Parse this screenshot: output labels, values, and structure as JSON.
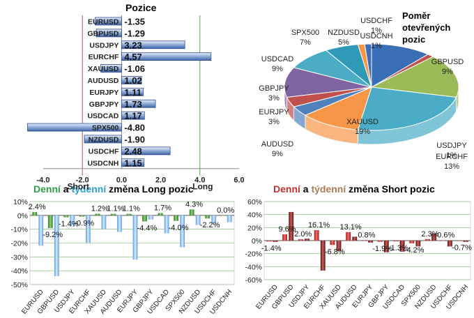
{
  "chart_data": [
    {
      "type": "bar",
      "orientation": "horizontal",
      "title": "Pozice",
      "categories": [
        "EURUSD",
        "GBPUSD",
        "USDJPY",
        "EURCHF",
        "XAUUSD",
        "AUDUSD",
        "EURJPY",
        "GBPJPY",
        "USDCAD",
        "SPX500",
        "NZDUSD",
        "USDCHF",
        "USDCNH"
      ],
      "values": [
        -1.35,
        -1.29,
        3.23,
        4.57,
        -1.06,
        1.02,
        1.11,
        1.73,
        1.17,
        -4.8,
        -1.9,
        2.48,
        1.15
      ],
      "value_labels": [
        "-1.35",
        "-1.29",
        "3.23",
        "4.57",
        "-1.06",
        "1.02",
        "1.11",
        "1.73",
        "1.17",
        "-4.80",
        "-1.90",
        "2.48",
        "1.15"
      ],
      "xlim": [
        -4,
        6
      ],
      "x_ticks": [
        "-4.0",
        "-2.0",
        "0.0",
        "2.0",
        "4.0",
        "6.0"
      ],
      "short_label": "Short",
      "long_label": "Long",
      "colors": {
        "bar": "#7f9fd0",
        "short_line": "#c0504d",
        "long_line": "#4caa3c"
      }
    },
    {
      "type": "pie",
      "title": "Poměr otevřených pozic",
      "slices": [
        {
          "name": "GBPUSD",
          "pct": "9%",
          "value": 9,
          "color": "#3a6fb5"
        },
        {
          "name": "USDJPY",
          "pct": "1%",
          "value": 1,
          "color": "#c0504d"
        },
        {
          "name": "EURCHF",
          "pct": "13%",
          "value": 13,
          "color": "#9bbb59"
        },
        {
          "name": "XAUUSD",
          "pct": "19%",
          "value": 19,
          "color": "#4aacc6"
        },
        {
          "name": "AUDUSD",
          "pct": "9%",
          "value": 9,
          "color": "#f79646"
        },
        {
          "name": "EURJPY",
          "pct": "3%",
          "value": 3,
          "color": "#4f81bd"
        },
        {
          "name": "GBPJPY",
          "pct": "3%",
          "value": 3,
          "color": "#c0504d"
        },
        {
          "name": "USDCAD",
          "pct": "9%",
          "value": 9,
          "color": "#8064a2"
        },
        {
          "name": "SPX500",
          "pct": "7%",
          "value": 7,
          "color": "#4bacc6"
        },
        {
          "name": "NZDUSD",
          "pct": "5%",
          "value": 5,
          "color": "#2e9ab7"
        },
        {
          "name": "USDCHF",
          "pct": "1%",
          "value": 1,
          "color": "#f79646"
        },
        {
          "name": "USDCNH",
          "pct": "1%",
          "value": 1,
          "color": "#3a6fb5"
        }
      ]
    },
    {
      "type": "bar",
      "title_parts": [
        "Denní",
        " a ",
        "týdenní",
        " změna Long pozic"
      ],
      "categories": [
        "EURUSD",
        "GBPUSD",
        "USDJPY",
        "EURCHF",
        "XAUUSD",
        "AUDUSD",
        "EURJPY",
        "GBPJPY",
        "USDCAD",
        "SPX500",
        "NZDUSD",
        "USDCHF",
        "USDCNH"
      ],
      "series": [
        {
          "values": [
            2.4,
            -9.2,
            -1.4,
            -0.9,
            1.2,
            1.1,
            1.1,
            -4.4,
            1.7,
            -4.0,
            4.3,
            -2.2,
            0.0
          ]
        },
        {
          "values": [
            -22,
            -44,
            -8,
            -20,
            -10,
            -12,
            -32,
            -3,
            -13,
            -23,
            -7,
            -6,
            -5
          ]
        }
      ],
      "value_labels": [
        "2.4%",
        "-9.2%",
        "-1.4%",
        "-0.9%",
        "1.2%",
        "1.1%",
        "1.1%",
        "-4.4%",
        "1.7%",
        "-4.0%",
        "4.3%",
        "-2.2%",
        "0.0%"
      ],
      "ylim": [
        -50,
        10
      ],
      "y_ticks": [
        "10%",
        "0%",
        "-10%",
        "-20%",
        "-30%",
        "-40%",
        "-50%"
      ],
      "colors": {
        "daily": "#4f9a3a",
        "weekly": "#6aaee8",
        "title_daily": "#2e9e48",
        "title_weekly": "#2aa0d8"
      }
    },
    {
      "type": "bar",
      "title_parts": [
        "Denní",
        " a ",
        "týdenní",
        " změna Short pozic"
      ],
      "categories": [
        "EURUSD",
        "GBPUSD",
        "USDJPY",
        "EURCHF",
        "XAUUSD",
        "AUDUSD",
        "EURJPY",
        "GBPJPY",
        "USDCAD",
        "SPX500",
        "NZDUSD",
        "USDCHF",
        "USDCNH"
      ],
      "series": [
        {
          "values": [
            -1.4,
            9.6,
            2.0,
            16.1,
            -6.8,
            13.1,
            0.8,
            -1.9,
            -1.3,
            -4.2,
            2.3,
            0.6,
            -0.7
          ]
        },
        {
          "values": [
            -2,
            44,
            3,
            -46,
            -16,
            6,
            -3,
            -18,
            -17,
            -9,
            11,
            -9,
            -2
          ]
        }
      ],
      "value_labels": [
        "-1.4%",
        "9.6%",
        "2.0%",
        "16.1%",
        "-6.8%",
        "13.1%",
        "0.8%",
        "-1.9%",
        "-1.3%",
        "-4.2%",
        "2.3%",
        "0.6%",
        "-0.7%"
      ],
      "ylim": [
        -60,
        60
      ],
      "y_ticks": [
        "60%",
        "40%",
        "20%",
        "0%",
        "-20%",
        "-40%",
        "-60%"
      ],
      "colors": {
        "daily": "#c0302a",
        "weekly": "#7a2222",
        "title_daily": "#c0302a",
        "title_weekly": "#b07a50"
      }
    }
  ]
}
